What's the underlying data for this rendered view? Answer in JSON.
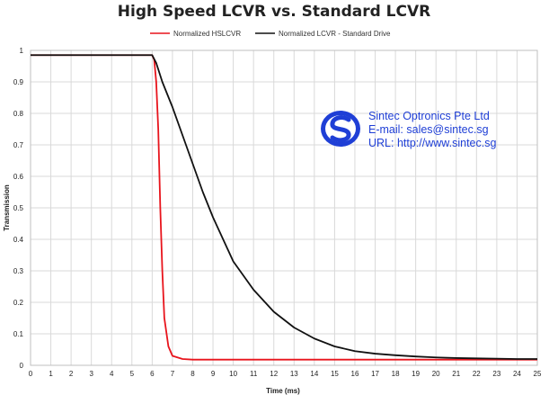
{
  "chart_data": {
    "type": "line",
    "title": "High Speed LCVR vs. Standard LCVR",
    "xlabel": "Time (ms)",
    "ylabel": "Transmission",
    "xlim": [
      0,
      25
    ],
    "ylim": [
      0,
      1
    ],
    "x_ticks": [
      "0",
      "1",
      "2",
      "3",
      "4",
      "5",
      "6",
      "7",
      "8",
      "9",
      "10",
      "11",
      "12",
      "13",
      "14",
      "15",
      "16",
      "17",
      "18",
      "19",
      "20",
      "21",
      "22",
      "23",
      "24",
      "25"
    ],
    "y_ticks": [
      "0",
      "0.1",
      "0.2",
      "0.3",
      "0.4",
      "0.5",
      "0.6",
      "0.7",
      "0.8",
      "0.9",
      "1"
    ],
    "grid": true,
    "legend_position": "top-center",
    "series": [
      {
        "name": "Normalized HSLCVR",
        "color": "#e8141c",
        "x": [
          0,
          6.0,
          6.1,
          6.2,
          6.3,
          6.4,
          6.5,
          6.6,
          6.8,
          7.0,
          7.5,
          8,
          10,
          15,
          20,
          25
        ],
        "y": [
          0.985,
          0.985,
          0.97,
          0.9,
          0.75,
          0.5,
          0.3,
          0.15,
          0.06,
          0.03,
          0.02,
          0.018,
          0.018,
          0.018,
          0.018,
          0.018
        ]
      },
      {
        "name": "Normalized LCVR - Standard Drive",
        "color": "#111111",
        "x": [
          0,
          6.0,
          6.2,
          6.5,
          7.0,
          7.5,
          8,
          8.5,
          9,
          9.5,
          10,
          11,
          12,
          13,
          14,
          15,
          16,
          17,
          18,
          19,
          20,
          21,
          22,
          23,
          24,
          25
        ],
        "y": [
          0.985,
          0.985,
          0.96,
          0.9,
          0.82,
          0.73,
          0.64,
          0.55,
          0.47,
          0.4,
          0.33,
          0.24,
          0.17,
          0.12,
          0.085,
          0.06,
          0.045,
          0.037,
          0.032,
          0.028,
          0.025,
          0.023,
          0.022,
          0.021,
          0.02,
          0.02
        ]
      }
    ]
  },
  "watermark": {
    "logo": "sintec-s-logo-icon",
    "logo_color": "#1f3fd6",
    "lines": [
      "Sintec Optronics Pte Ltd",
      "E-mail: sales@sintec.sg",
      "URL: http://www.sintec.sg"
    ]
  }
}
